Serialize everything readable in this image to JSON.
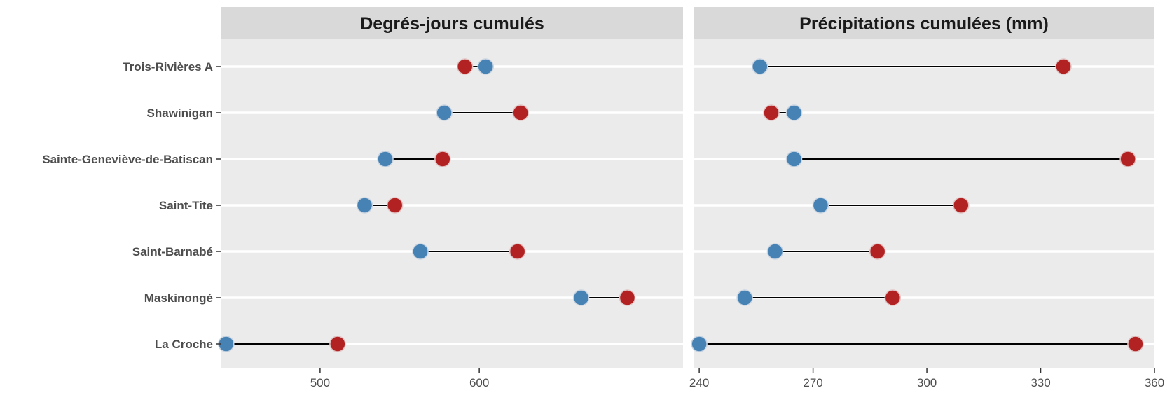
{
  "chart_data": {
    "type": "dumbbell",
    "stations": [
      "Trois-Rivières A",
      "Shawinigan",
      "Sainte-Geneviève-de-Batiscan",
      "Saint-Tite",
      "Saint-Barnabé",
      "Maskinongé",
      "La Croche"
    ],
    "colors": {
      "blue": "#4682B4",
      "red": "#B22222",
      "segment": "#000000",
      "panel_bg": "#EBEBEB",
      "strip_bg": "#D9D9D9",
      "grid": "#FFFFFF"
    },
    "panels": [
      {
        "title": "Degrés-jours cumulés",
        "xlim": [
          438,
          728
        ],
        "xticks": [
          500,
          600
        ],
        "blue": [
          604,
          578,
          541,
          528,
          563,
          664,
          441
        ],
        "red": [
          591,
          626,
          577,
          547,
          624,
          693,
          511
        ]
      },
      {
        "title": "Précipitations cumulées (mm)",
        "xlim": [
          238.5,
          360
        ],
        "xticks": [
          240,
          270,
          300,
          330,
          360
        ],
        "blue": [
          256,
          265,
          265,
          272,
          260,
          252,
          240
        ],
        "red": [
          336,
          259,
          353,
          309,
          287,
          291,
          355
        ]
      }
    ]
  }
}
